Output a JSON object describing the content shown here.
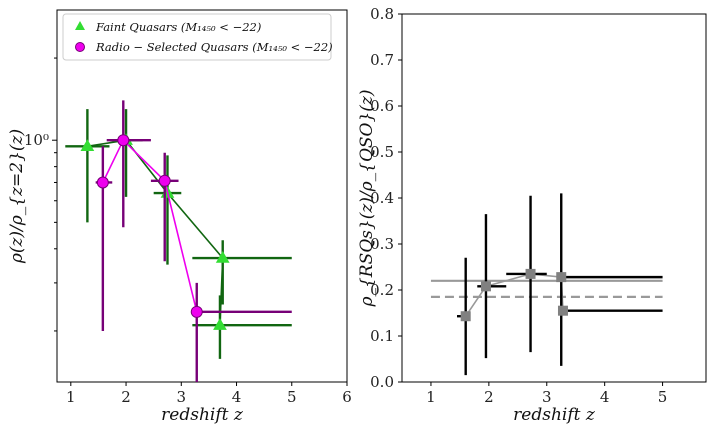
{
  "chart_data": [
    {
      "type": "scatter",
      "panel": "left",
      "xlabel": "redshift z",
      "ylabel": "ρ(z)/ρ_{z=2}(z)",
      "xlim": [
        0.75,
        6
      ],
      "ylim": [
        0.13,
        3.0
      ],
      "yscale": "log",
      "xticks": [
        "1",
        "2",
        "3",
        "4",
        "5",
        "6"
      ],
      "yticks": [
        {
          "value": 1,
          "label": "10⁰"
        }
      ],
      "legend": {
        "placement": "top-left",
        "entries": [
          {
            "label": "Faint Quasars (M₁₄₅₀ < −22)",
            "series": "faint"
          },
          {
            "label": "Radio − Selected Quasars (M₁₄₅₀ < −22)",
            "series": "radio"
          }
        ]
      },
      "series": [
        {
          "key": "faint",
          "name": "Faint Quasars (M₁₄₅₀ < −22)",
          "marker": "triangle",
          "color": "#33dd33",
          "line_color": "#116611",
          "points": [
            {
              "x": 1.3,
              "y": 0.95,
              "xlo": 0.9,
              "xhi": 1.7,
              "ylo": 0.5,
              "yhi": 1.3
            },
            {
              "x": 2.0,
              "y": 1.0,
              "xlo": 1.7,
              "xhi": 2.3,
              "ylo": 0.62,
              "yhi": 1.3
            },
            {
              "x": 2.75,
              "y": 0.64,
              "xlo": 2.5,
              "xhi": 3.0,
              "ylo": 0.35,
              "yhi": 0.88
            },
            {
              "x": 3.75,
              "y": 0.37,
              "xlo": 3.2,
              "xhi": 5.0,
              "ylo": 0.25,
              "yhi": 0.43
            },
            {
              "x": 3.7,
              "y": 0.21,
              "xlo": 3.2,
              "xhi": 5.0,
              "ylo": 0.158,
              "yhi": 0.27
            }
          ]
        },
        {
          "key": "radio",
          "name": "Radio − Selected Quasars (M₁₄₅₀ < −22)",
          "marker": "circle",
          "color": "#ee00ee",
          "line_color": "#770077",
          "points": [
            {
              "x": 1.58,
              "y": 0.7,
              "xlo": 1.45,
              "xhi": 1.75,
              "ylo": 0.2,
              "yhi": 0.95
            },
            {
              "x": 1.95,
              "y": 1.0,
              "xlo": 1.65,
              "xhi": 2.45,
              "ylo": 0.48,
              "yhi": 1.4
            },
            {
              "x": 2.7,
              "y": 0.71,
              "xlo": 2.45,
              "xhi": 2.95,
              "ylo": 0.36,
              "yhi": 0.9
            },
            {
              "x": 3.28,
              "y": 0.235,
              "xlo": 3.2,
              "xhi": 5.0,
              "ylo": 0.13,
              "yhi": 0.3
            }
          ]
        }
      ]
    },
    {
      "type": "scatter",
      "panel": "right",
      "xlabel": "redshift z",
      "ylabel": "ρ_{RSQs}(z)/ρ_{QSO}(z)",
      "xlim": [
        0.5,
        5.75
      ],
      "ylim": [
        0.0,
        0.8
      ],
      "xticks": [
        "1",
        "2",
        "3",
        "4",
        "5"
      ],
      "yticks": [
        "0.0",
        "0.1",
        "0.2",
        "0.3",
        "0.4",
        "0.5",
        "0.6",
        "0.7",
        "0.8"
      ],
      "hlines": [
        {
          "y": 0.22,
          "style": "solid",
          "color": "#999999",
          "xmin": 1.0,
          "xmax": 5.0
        },
        {
          "y": 0.185,
          "style": "dashed",
          "color": "#999999",
          "xmin": 1.0,
          "xmax": 5.0
        }
      ],
      "series": [
        {
          "key": "ratio",
          "name": "",
          "marker": "square",
          "color": "#808080",
          "line_color": "#999999",
          "errcolor": "#000000",
          "points": [
            {
              "x": 1.6,
              "y": 0.143,
              "xlo": 1.45,
              "xhi": 1.65,
              "ylo": 0.015,
              "yhi": 0.27
            },
            {
              "x": 1.95,
              "y": 0.208,
              "xlo": 1.8,
              "xhi": 2.3,
              "ylo": 0.052,
              "yhi": 0.365
            },
            {
              "x": 2.72,
              "y": 0.235,
              "xlo": 2.3,
              "xhi": 3.0,
              "ylo": 0.065,
              "yhi": 0.405
            },
            {
              "x": 3.25,
              "y": 0.228,
              "xlo": 3.2,
              "xhi": 5.0,
              "ylo": 0.035,
              "yhi": 0.41
            },
            {
              "x": 3.28,
              "y": 0.155,
              "xlo": 3.2,
              "xhi": 5.0,
              "ylo": 0.155,
              "yhi": 0.155
            }
          ]
        }
      ]
    }
  ]
}
